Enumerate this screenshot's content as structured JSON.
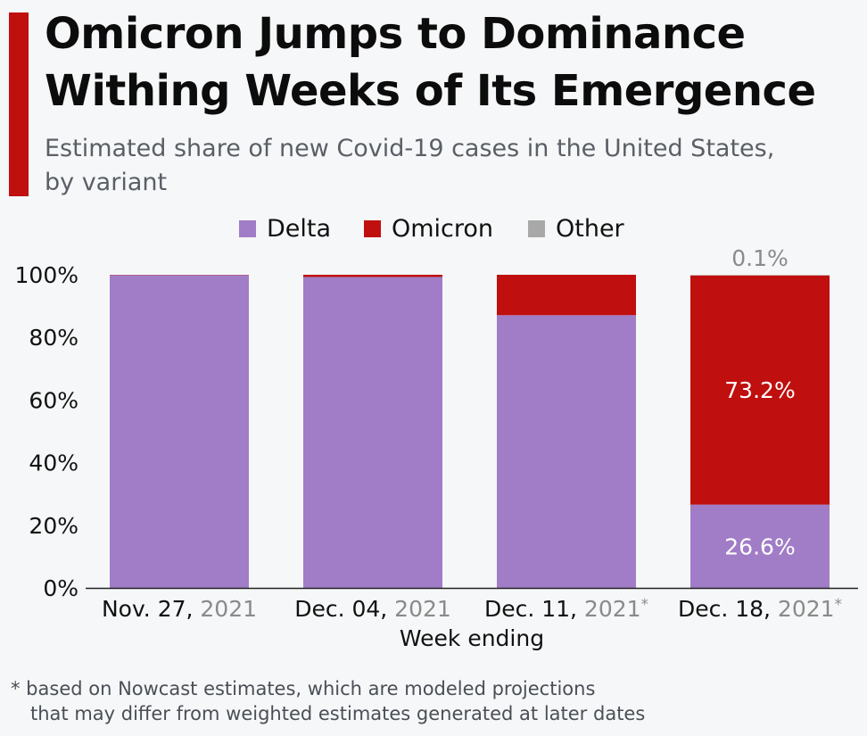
{
  "header": {
    "title_lines": [
      "Omicron Jumps to Dominance",
      "Withing Weeks of Its Emergence"
    ],
    "subtitle_lines": [
      "Estimated share of new Covid-19 cases in the United States,",
      "by variant"
    ]
  },
  "colors": {
    "accent": "#c00f0f",
    "delta": "#a07dc6",
    "omicron": "#c00f0f",
    "other": "#a8a8a8",
    "year_text": "#8a8a8a",
    "label_white": "#ffffff",
    "label_gray": "#8a8a8a"
  },
  "chart_data": {
    "type": "bar",
    "stacked": true,
    "categories": [
      {
        "main": "Nov. 27, ",
        "year": "2021",
        "mark": ""
      },
      {
        "main": "Dec. 04, ",
        "year": "2021",
        "mark": ""
      },
      {
        "main": "Dec. 11, ",
        "year": "2021",
        "mark": "*"
      },
      {
        "main": "Dec. 18, ",
        "year": "2021",
        "mark": "*"
      }
    ],
    "series": [
      {
        "name": "Delta",
        "values": [
          99.9,
          99.3,
          87.1,
          26.6
        ]
      },
      {
        "name": "Omicron",
        "values": [
          0.1,
          0.7,
          12.9,
          73.2
        ]
      },
      {
        "name": "Other",
        "values": [
          0.0,
          0.0,
          0.0,
          0.1
        ]
      }
    ],
    "data_labels": [
      {
        "category_index": 3,
        "series": "Delta",
        "text": "26.6%"
      },
      {
        "category_index": 3,
        "series": "Omicron",
        "text": "73.2%"
      },
      {
        "category_index": 3,
        "series": "Other",
        "text": "0.1%"
      }
    ],
    "ylim": [
      0,
      100
    ],
    "yticks": [
      "0%",
      "20%",
      "40%",
      "60%",
      "80%",
      "100%"
    ],
    "ytick_values": [
      0,
      20,
      40,
      60,
      80,
      100
    ],
    "xlabel": "Week ending",
    "ylabel": "",
    "legend_position": "top-center"
  },
  "footnote": {
    "line1": "* based on Nowcast estimates, which are modeled projections",
    "line2": "that may differ from weighted estimates generated at later dates"
  }
}
